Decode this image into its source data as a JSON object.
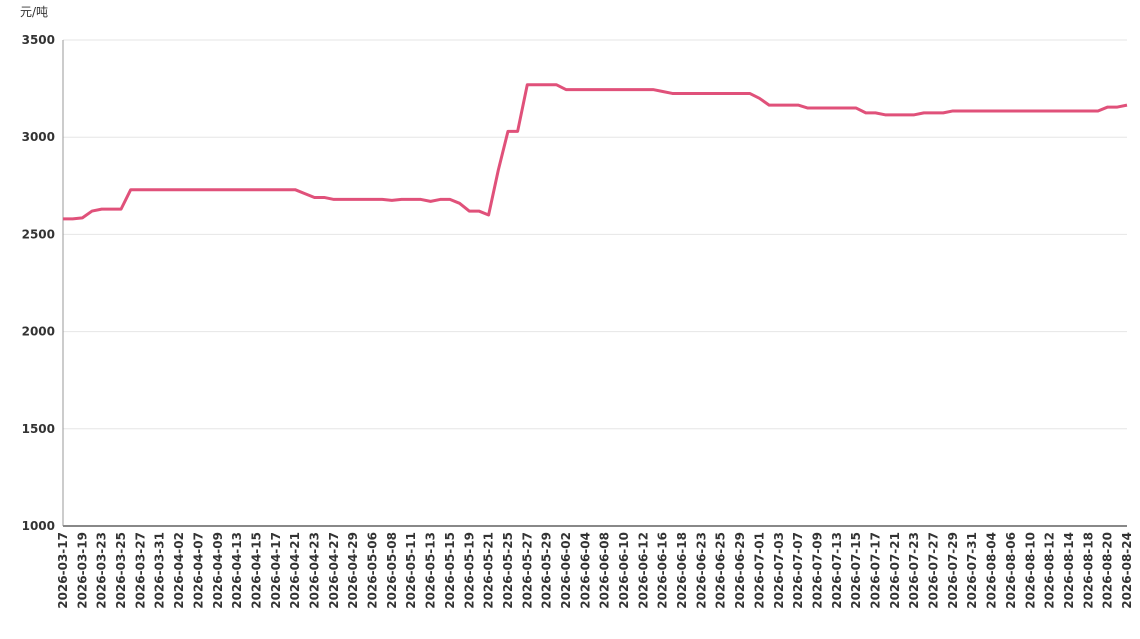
{
  "chart_data": {
    "type": "line",
    "y_unit": "元/吨",
    "categories": [
      "2026-03-17",
      null,
      "2026-03-19",
      null,
      "2026-03-23",
      null,
      "2026-03-25",
      null,
      "2026-03-27",
      null,
      "2026-03-31",
      null,
      "2026-04-02",
      null,
      "2026-04-07",
      null,
      "2026-04-09",
      null,
      "2026-04-13",
      null,
      "2026-04-15",
      null,
      "2026-04-17",
      null,
      "2026-04-21",
      null,
      "2026-04-23",
      null,
      "2026-04-27",
      null,
      "2026-04-29",
      null,
      "2026-05-06",
      null,
      "2026-05-08",
      null,
      "2026-05-11",
      null,
      "2026-05-13",
      null,
      "2026-05-15",
      null,
      "2026-05-19",
      null,
      "2026-05-21",
      null,
      "2026-05-25",
      null,
      "2026-05-27",
      null,
      "2026-05-29",
      null,
      "2026-06-02",
      null,
      "2026-06-04",
      null,
      "2026-06-08",
      null,
      "2026-06-10",
      null,
      "2026-06-12",
      null,
      "2026-06-16",
      null,
      "2026-06-18",
      null,
      "2026-06-23",
      null,
      "2026-06-25",
      null,
      "2026-06-29",
      null,
      "2026-07-01",
      null,
      "2026-07-03",
      null,
      "2026-07-07",
      null,
      "2026-07-09",
      null,
      "2026-07-13",
      null,
      "2026-07-15",
      null,
      "2026-07-17",
      null,
      "2026-07-21",
      null,
      "2026-07-23",
      null,
      "2026-07-27",
      null,
      "2026-07-29",
      null,
      "2026-07-31",
      null,
      "2026-08-04",
      null,
      "2026-08-06",
      null,
      "2026-08-10",
      null,
      "2026-08-12",
      null,
      "2026-08-14",
      null,
      "2026-08-18",
      null,
      "2026-08-20",
      null,
      "2026-08-24"
    ],
    "values": [
      2580,
      2580,
      2585,
      2620,
      2630,
      2630,
      2630,
      2730,
      2730,
      2730,
      2730,
      2730,
      2730,
      2730,
      2730,
      2730,
      2730,
      2730,
      2730,
      2730,
      2730,
      2730,
      2730,
      2730,
      2730,
      2710,
      2690,
      2690,
      2680,
      2680,
      2680,
      2680,
      2680,
      2680,
      2675,
      2680,
      2680,
      2680,
      2670,
      2680,
      2680,
      2660,
      2620,
      2620,
      2600,
      2830,
      3030,
      3030,
      3270,
      3270,
      3270,
      3270,
      3245,
      3245,
      3245,
      3245,
      3245,
      3245,
      3245,
      3245,
      3245,
      3245,
      3235,
      3225,
      3225,
      3225,
      3225,
      3225,
      3225,
      3225,
      3225,
      3225,
      3200,
      3165,
      3165,
      3165,
      3165,
      3150,
      3150,
      3150,
      3150,
      3150,
      3150,
      3125,
      3125,
      3115,
      3115,
      3115,
      3115,
      3125,
      3125,
      3125,
      3135,
      3135,
      3135,
      3135,
      3135,
      3135,
      3135,
      3135,
      3135,
      3135,
      3135,
      3135,
      3135,
      3135,
      3135,
      3135,
      3155,
      3155,
      3165
    ],
    "color": "#e0517a",
    "ylim": [
      1000,
      3500
    ],
    "yticks": [
      1000,
      1500,
      2000,
      2500,
      3000,
      3500
    ],
    "grid": true
  }
}
